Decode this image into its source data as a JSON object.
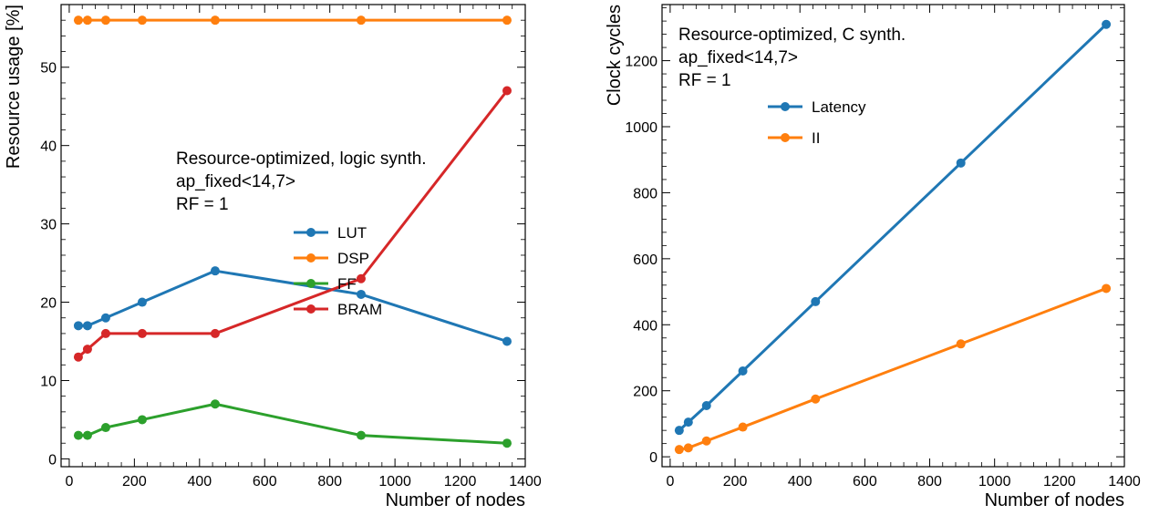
{
  "chart_data": [
    {
      "type": "line",
      "xlabel": "Number of nodes",
      "ylabel": "Resource usage [%]",
      "xlim": [
        -25,
        1400
      ],
      "ylim": [
        -1,
        58
      ],
      "xticks": [
        0,
        200,
        400,
        600,
        800,
        1000,
        1200,
        1400
      ],
      "yticks": [
        0,
        10,
        20,
        30,
        40,
        50
      ],
      "annotation": [
        "Resource-optimized, logic synth.",
        "ap_fixed<14,7>",
        "RF = 1"
      ],
      "legend_position": "center-right",
      "x": [
        28,
        56,
        112,
        224,
        448,
        896,
        1344
      ],
      "series": [
        {
          "name": "LUT",
          "color": "#1f77b4",
          "values": [
            17,
            17,
            18,
            20,
            24,
            21,
            15
          ]
        },
        {
          "name": "DSP",
          "color": "#ff7f0e",
          "values": [
            56,
            56,
            56,
            56,
            56,
            56,
            56
          ]
        },
        {
          "name": "FF",
          "color": "#2ca02c",
          "values": [
            3,
            3,
            4,
            5,
            7,
            3,
            2
          ]
        },
        {
          "name": "BRAM",
          "color": "#d62728",
          "values": [
            13,
            14,
            16,
            16,
            16,
            23,
            47
          ]
        }
      ]
    },
    {
      "type": "line",
      "xlabel": "Number of nodes",
      "ylabel": "Clock cycles",
      "xlim": [
        -25,
        1400
      ],
      "ylim": [
        -30,
        1370
      ],
      "xticks": [
        0,
        200,
        400,
        600,
        800,
        1000,
        1200,
        1400
      ],
      "yticks": [
        0,
        200,
        400,
        600,
        800,
        1000,
        1200
      ],
      "annotation": [
        "Resource-optimized, C synth.",
        "ap_fixed<14,7>",
        "RF = 1"
      ],
      "legend_position": "upper-center",
      "x": [
        28,
        56,
        112,
        224,
        448,
        896,
        1344
      ],
      "series": [
        {
          "name": "Latency",
          "color": "#1f77b4",
          "values": [
            80,
            105,
            155,
            260,
            470,
            890,
            1310
          ]
        },
        {
          "name": "II",
          "color": "#ff7f0e",
          "values": [
            22,
            27,
            48,
            90,
            175,
            342,
            510
          ]
        }
      ]
    }
  ]
}
